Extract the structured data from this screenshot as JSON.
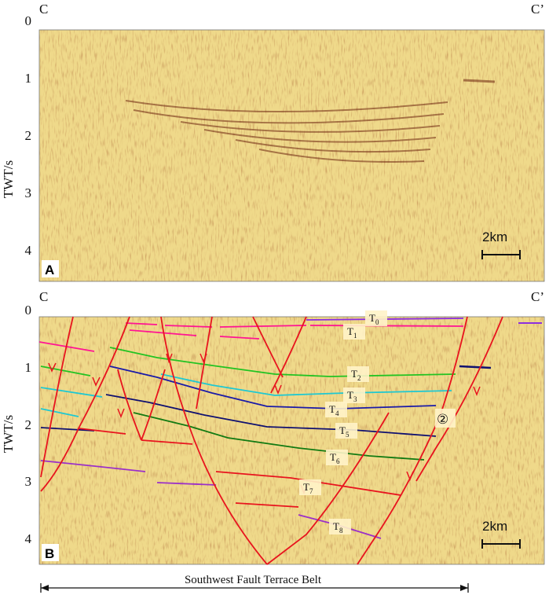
{
  "panel_a": {
    "letter": "A",
    "left_label": "C",
    "right_label": "C’",
    "y_axis_title": "TWT/s",
    "y_ticks": [
      "0",
      "1",
      "2",
      "3",
      "4"
    ],
    "scale_bar": "2km"
  },
  "panel_b": {
    "letter": "B",
    "left_label": "C",
    "right_label": "C’",
    "y_axis_title": "TWT/s",
    "y_ticks": [
      "0",
      "1",
      "2",
      "3",
      "4"
    ],
    "scale_bar": "2km",
    "fault_number": "②",
    "horizons": [
      {
        "base": "T",
        "sub": "0",
        "color": "#8a2be2"
      },
      {
        "base": "T",
        "sub": "1",
        "color": "#ff1493"
      },
      {
        "base": "T",
        "sub": "2",
        "color": "#22c322"
      },
      {
        "base": "T",
        "sub": "3",
        "color": "#1ec8d2"
      },
      {
        "base": "T",
        "sub": "4",
        "color": "#1a1aa8"
      },
      {
        "base": "T",
        "sub": "5",
        "color": "#101070"
      },
      {
        "base": "T",
        "sub": "6",
        "color": "#127a12"
      },
      {
        "base": "T",
        "sub": "7",
        "color": "#d81414"
      },
      {
        "base": "T",
        "sub": "8",
        "color": "#9b30c8"
      }
    ],
    "fault_color": "#e8141e"
  },
  "belt_label": "Southwest Fault Terrace Belt"
}
